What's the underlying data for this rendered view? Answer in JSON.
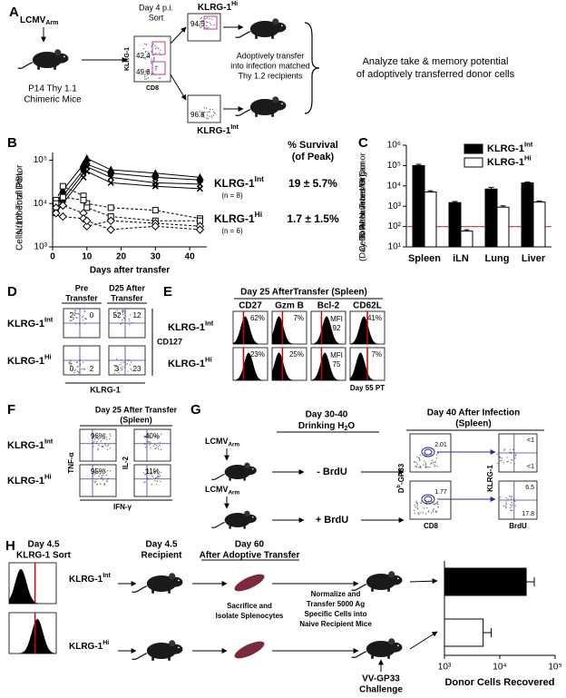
{
  "figure": {
    "a": {
      "label": "A",
      "virus": {
        "base": "LCMV",
        "sub": "Arm"
      },
      "mice": [
        "P14 Thy 1.1",
        "Chimeric Mice"
      ],
      "sort": [
        "Day 4 p.i.",
        "Sort"
      ],
      "y_axis": "KLRG-1",
      "x_axis": "CD8",
      "gates": [
        "42.4",
        "49.8"
      ],
      "hi": {
        "base": "KLRG-1",
        "sup": "Hi"
      },
      "hi_purity": "94.5",
      "int": {
        "base": "KLRG-1",
        "sup": "Int"
      },
      "int_purity": "96.8",
      "transfer": [
        "Adoptively transfer",
        "into infection matched",
        "Thy 1.2 recipients"
      ],
      "analyze": [
        "Analyze take & memory potential",
        "of adoptively transferred donor cells"
      ]
    },
    "b": {
      "label": "B",
      "survival_header": [
        "% Survival",
        "(of Peak)"
      ],
      "int": {
        "base": "KLRG-1",
        "sup": "Int",
        "n": "(n = 8)",
        "survival": "19 ± 5.7%"
      },
      "hi": {
        "base": "KLRG-1",
        "sup": "Hi",
        "n": "(n = 6)",
        "survival": "1.7 ± 1.5%"
      }
    },
    "c": {
      "label": "C"
    },
    "d": {
      "label": "D",
      "columns": [
        [
          "Pre",
          "Transfer"
        ],
        [
          "D25 After",
          "Transfer"
        ]
      ],
      "rows": [
        {
          "base": "KLRG-1",
          "sup": "Int"
        },
        {
          "base": "KLRG-1",
          "sup": "Hi"
        }
      ],
      "quadrants": [
        [
          [
            "2",
            "0"
          ],
          [
            "52",
            "12"
          ]
        ],
        [
          [
            "0",
            "2"
          ],
          [
            "3",
            "23"
          ]
        ]
      ],
      "y_axis": "CD127",
      "x_axis": "KLRG-1"
    },
    "e": {
      "label": "E",
      "title": "Day 25 AfterTransfer (Spleen)",
      "columns": [
        "CD27",
        "Gzm B",
        "Bcl-2",
        "CD62L"
      ],
      "rows": [
        {
          "base": "KLRG-1",
          "sup": "Int"
        },
        {
          "base": "KLRG-1",
          "sup": "Hi"
        }
      ],
      "values": [
        [
          "62%",
          "7%",
          [
            "MFI",
            "92"
          ],
          "41%"
        ],
        [
          "23%",
          "25%",
          [
            "MFI",
            "75"
          ],
          "7%"
        ]
      ],
      "note": "Day 55 PT"
    },
    "f": {
      "label": "F",
      "title": [
        "Day 25 After Transfer",
        "(Spleen)"
      ],
      "rows": [
        {
          "base": "KLRG-1",
          "sup": "Int"
        },
        {
          "base": "KLRG-1",
          "sup": "Hi"
        }
      ],
      "values": [
        [
          "96%",
          "40%"
        ],
        [
          "95%",
          "11%"
        ]
      ],
      "y_axes": [
        "TNF-α",
        "IL-2"
      ],
      "x_axis": "IFN-γ"
    },
    "g": {
      "label": "G",
      "virus": [
        {
          "base": "LCMV",
          "sub": "Arm"
        },
        {
          "base": "LCMV",
          "sub": "Arm"
        }
      ],
      "treatment_header": [
        "Day 30-40",
        {
          "base": "Drinking H",
          "sub": "2",
          "tail": "O"
        }
      ],
      "treatments": [
        "- BrdU",
        "+ BrdU"
      ],
      "title": [
        "Day 40 After Infection",
        "(Spleen)"
      ],
      "tetramer": {
        "base": "D",
        "sup": "b",
        "tail": "-GP33"
      },
      "cd8": "CD8",
      "gates": [
        "2.01",
        "1.77"
      ],
      "klrg1": "KLRG-1",
      "brdu": "BrdU",
      "quadrants": [
        [
          "<1",
          "<1"
        ],
        [
          "6.5",
          "17.8"
        ]
      ]
    },
    "h": {
      "label": "H",
      "sort": [
        "Day 4.5",
        "KLRG-1 Sort"
      ],
      "recipient": [
        "Day 4.5",
        "Recipient"
      ],
      "timepoint": [
        "Day 60",
        "After Adoptive Transfer"
      ],
      "rows": [
        {
          "base": "KLRG-1",
          "sup": "Int"
        },
        {
          "base": "KLRG-1",
          "sup": "Hi"
        }
      ],
      "isolate": [
        "Sacrifice and",
        "Isolate Splenocytes"
      ],
      "normalize": [
        "Normalize and",
        "Transfer 5000 Ag",
        "Specific Cells into",
        "Naive Recipient Mice"
      ],
      "challenge": [
        "VV-GP33",
        "Challenge"
      ]
    }
  },
  "chart_data": [
    {
      "type": "line",
      "yscale": "log",
      "x": [
        1,
        3,
        9,
        10,
        17,
        30,
        43
      ],
      "xlim": [
        0,
        45
      ],
      "ylim": [
        1000,
        150000
      ],
      "xticks": [
        0,
        10,
        20,
        30,
        40
      ],
      "yticks": [
        {
          "value": 1000,
          "label": "10³"
        },
        {
          "value": 10000,
          "label": "10⁴"
        },
        {
          "value": 100000,
          "label": "10⁵"
        }
      ],
      "xlabel": "Days after transfer",
      "ylabel": [
        "Number of Donor",
        "Cells /10⁷ Total PBL"
      ],
      "series": [
        {
          "color": "#000000",
          "dash": false,
          "marker": "triangle",
          "values": [
            9000,
            20000,
            80000,
            110000,
            60000,
            50000,
            40000
          ]
        },
        {
          "color": "#000000",
          "dash": false,
          "marker": "circle",
          "values": [
            8000,
            15000,
            60000,
            80000,
            50000,
            40000,
            35000
          ]
        },
        {
          "color": "#000000",
          "dash": false,
          "marker": "x",
          "values": [
            7000,
            12000,
            50000,
            70000,
            40000,
            30000,
            28000
          ]
        },
        {
          "color": "#000000",
          "dash": false,
          "marker": "x",
          "values": [
            6000,
            10000,
            40000,
            55000,
            30000,
            25000,
            22000
          ]
        },
        {
          "color": "#000000",
          "dash": true,
          "marker": "square",
          "values": [
            12000,
            25000,
            15000,
            10000,
            8000,
            7000,
            4500
          ]
        },
        {
          "color": "#000000",
          "dash": true,
          "marker": "square",
          "values": [
            10000,
            14000,
            12000,
            8000,
            5000,
            4000,
            4000
          ]
        },
        {
          "color": "#000000",
          "dash": true,
          "marker": "diamond",
          "values": [
            8000,
            9000,
            6000,
            3000,
            4000,
            3500,
            3000
          ]
        },
        {
          "color": "#000000",
          "dash": true,
          "marker": "diamond",
          "values": [
            6000,
            5000,
            4500,
            4000,
            2500,
            3000,
            2500
          ]
        }
      ]
    },
    {
      "type": "bar",
      "yscale": "log",
      "categories": [
        "Spleen",
        "iLN",
        "Lung",
        "Liver"
      ],
      "ylim": [
        10,
        1000000
      ],
      "yticks": [
        {
          "value": 10,
          "label": "10¹"
        },
        {
          "value": 100,
          "label": "10²"
        },
        {
          "value": 1000,
          "label": "10³"
        },
        {
          "value": 10000,
          "label": "10⁴"
        },
        {
          "value": 100000,
          "label": "10⁵"
        },
        {
          "value": 1000000,
          "label": "10⁶"
        }
      ],
      "ylabel": [
        "Total Number of Donor",
        "Cells Recovered/Organ",
        "(Day 60 After Transfer)"
      ],
      "series": [
        {
          "name": {
            "base": "KLRG-1",
            "sup": "Int"
          },
          "color": "#000000",
          "values": [
            100000,
            1500,
            7000,
            14000
          ],
          "errors": [
            15000,
            200,
            1500,
            1500
          ]
        },
        {
          "name": {
            "base": "KLRG-1",
            "sup": "Hi"
          },
          "color": "#ffffff",
          "values": [
            5000,
            60,
            900,
            1600
          ],
          "errors": [
            800,
            10,
            150,
            200
          ]
        }
      ],
      "reference_line": {
        "value": 100,
        "color": "#c0504d"
      },
      "legend": "upper right"
    },
    {
      "type": "hbar",
      "xscale": "log",
      "values": [
        30000,
        5000
      ],
      "errors": [
        12000,
        2000
      ],
      "colors": [
        "#000000",
        "#ffffff"
      ],
      "xlim": [
        1000,
        100000
      ],
      "xticks": [
        {
          "value": 1000,
          "label": "10³"
        },
        {
          "value": 10000,
          "label": "10⁴"
        },
        {
          "value": 100000,
          "label": "10⁵"
        }
      ],
      "xlabel": "Donor Cells Recovered"
    }
  ]
}
